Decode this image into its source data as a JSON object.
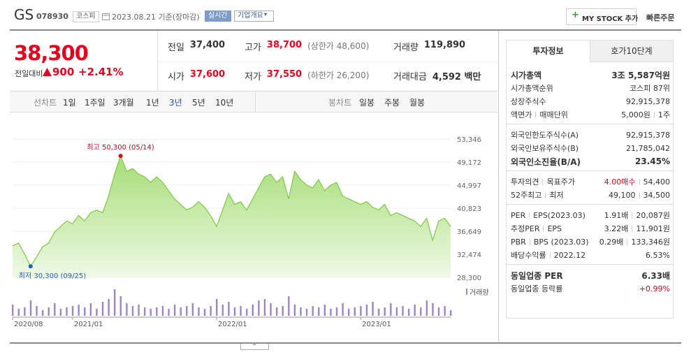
{
  "header": {
    "name": "GS",
    "code": "078930",
    "market": "코스피",
    "date": "2023.08.21 기준(장마감)",
    "badge": "실시간",
    "tab": "기업개요",
    "mystock": "MY STOCK 추가",
    "order": "빠른주문"
  },
  "price": {
    "current": "38,300",
    "change_label": "전일대비",
    "change": "900",
    "rate": "+2.41%"
  },
  "summary": [
    [
      {
        "label": "전일",
        "value": "37,400"
      },
      {
        "label": "고가",
        "value": "38,700",
        "note": "(상한가 48,600)",
        "color": "#e4001f"
      },
      {
        "label": "거래량",
        "value": "119,890"
      }
    ],
    [
      {
        "label": "시가",
        "value": "37,600",
        "color": "#e4001f"
      },
      {
        "label": "저가",
        "value": "37,550",
        "note": "(하한가 26,200)",
        "color": "#e4001f"
      },
      {
        "label": "거래대금",
        "value": "4,592 백만"
      }
    ]
  ],
  "periods": {
    "label": "선차트",
    "items": [
      "1일",
      "1주일",
      "3개월",
      "1년",
      "3년",
      "5년",
      "10년"
    ],
    "selected": 4
  },
  "candles": {
    "label": "봉차트",
    "items": [
      "일봉",
      "주봉",
      "월봉"
    ]
  },
  "chart_data": {
    "type": "area",
    "categories": [
      "2020/08",
      null,
      null,
      null,
      null,
      null,
      null,
      null,
      null,
      null,
      "2021/01",
      null,
      null,
      null,
      null,
      null,
      null,
      null,
      null,
      null,
      null,
      null,
      null,
      null,
      null,
      null,
      null,
      null,
      null,
      null,
      null,
      null,
      null,
      null,
      "2022/01",
      null,
      null,
      null,
      null,
      null,
      null,
      null,
      null,
      null,
      null,
      null,
      null,
      null,
      null,
      null,
      null,
      null,
      null,
      null,
      null,
      null,
      null,
      null,
      "2023/01",
      null,
      null,
      null,
      null,
      null,
      null,
      null,
      null,
      null,
      null,
      null,
      null,
      null,
      null,
      null
    ],
    "values": [
      34000,
      34500,
      32500,
      30300,
      32000,
      33800,
      34500,
      36500,
      37500,
      38500,
      38000,
      39500,
      38500,
      40000,
      40500,
      40000,
      43000,
      47000,
      50300,
      47500,
      48000,
      47000,
      46500,
      45500,
      46500,
      45500,
      44000,
      42500,
      41500,
      40500,
      41000,
      42000,
      41000,
      39500,
      37500,
      40500,
      43500,
      41500,
      42000,
      40500,
      42500,
      44500,
      46500,
      47000,
      45500,
      46500,
      42500,
      47500,
      46000,
      45000,
      44500,
      46000,
      44000,
      45000,
      45500,
      43000,
      42500,
      42000,
      41500,
      42000,
      41000,
      40500,
      41500,
      39500,
      40000,
      39500,
      39000,
      38500,
      37500,
      39000,
      35000,
      38500,
      39000,
      37500
    ],
    "color": "#84cc4c",
    "ylim": [
      28300,
      53346
    ],
    "yticks": [
      {
        "value": 28300,
        "label": "28,300"
      },
      {
        "value": 32474,
        "label": "32,474"
      },
      {
        "value": 36649,
        "label": "36,649"
      },
      {
        "value": 40823,
        "label": "40,823"
      },
      {
        "value": 44997,
        "label": "44,997"
      },
      {
        "value": 49172,
        "label": "49,172"
      },
      {
        "value": 53346,
        "label": "53,346"
      }
    ],
    "grid": true,
    "annotations": {
      "high": "최고 50,300 (05/14)",
      "low": "최저 30,300 (09/25)"
    },
    "volume": {
      "name": "거래량",
      "color": "#9c86c6",
      "values": [
        40,
        25,
        30,
        55,
        35,
        20,
        30,
        45,
        25,
        30,
        35,
        40,
        30,
        45,
        25,
        50,
        60,
        95,
        70,
        45,
        35,
        40,
        30,
        25,
        30,
        35,
        25,
        40,
        30,
        35,
        45,
        30,
        25,
        35,
        60,
        40,
        50,
        30,
        35,
        25,
        40,
        55,
        60,
        45,
        30,
        35,
        70,
        40,
        30,
        25,
        35,
        30,
        40,
        25,
        30,
        45,
        25,
        30,
        35,
        40,
        50,
        25,
        30,
        45,
        30,
        35,
        25,
        40,
        30,
        55,
        45,
        30,
        35,
        20
      ]
    }
  },
  "side": {
    "tabs": [
      "투자정보",
      "호가10단계"
    ],
    "sections": [
      [
        {
          "label": [
            "시가총액"
          ],
          "value": [
            "3조 5,587억원"
          ],
          "bold": true
        },
        {
          "label": [
            "시가총액순위"
          ],
          "value": [
            "코스피 87위"
          ]
        },
        {
          "label": [
            "상장주식수"
          ],
          "value": [
            "92,915,378"
          ]
        },
        {
          "label": [
            "액면가",
            "매매단위"
          ],
          "value": [
            "5,000원",
            "1주"
          ]
        }
      ],
      [
        {
          "label": [
            "외국인한도주식수(A)"
          ],
          "value": [
            "92,915,378"
          ]
        },
        {
          "label": [
            "외국인보유주식수(B)"
          ],
          "value": [
            "21,785,042"
          ]
        },
        {
          "label": [
            "외국인소진율(B/A)"
          ],
          "value": [
            "23.45%"
          ],
          "bold": true
        }
      ],
      [
        {
          "label": [
            "투자의견",
            "목표주가"
          ],
          "value": [
            "4.00매수",
            "54,400"
          ],
          "accent": 0
        },
        {
          "label": [
            "52주최고",
            "최저"
          ],
          "value": [
            "49,100",
            "34,500"
          ]
        }
      ],
      [
        {
          "label": [
            "PER",
            "EPS(2023.03)"
          ],
          "value": [
            "1.91배",
            "20,087원"
          ]
        },
        {
          "label": [
            "추정PER",
            "EPS"
          ],
          "value": [
            "3.22배",
            "11,901원"
          ]
        },
        {
          "label": [
            "PBR",
            "BPS (2023.03)"
          ],
          "value": [
            "0.29배",
            "133,346원"
          ]
        },
        {
          "label": [
            "배당수익률",
            "2022.12"
          ],
          "value": [
            "6.53%"
          ]
        }
      ],
      [
        {
          "label": [
            "동일업종 PER"
          ],
          "value": [
            "6.33배"
          ],
          "bold": true
        },
        {
          "label": [
            "동일업종 등락률"
          ],
          "value": [
            "+0.99%"
          ],
          "accent": 0
        }
      ]
    ]
  }
}
